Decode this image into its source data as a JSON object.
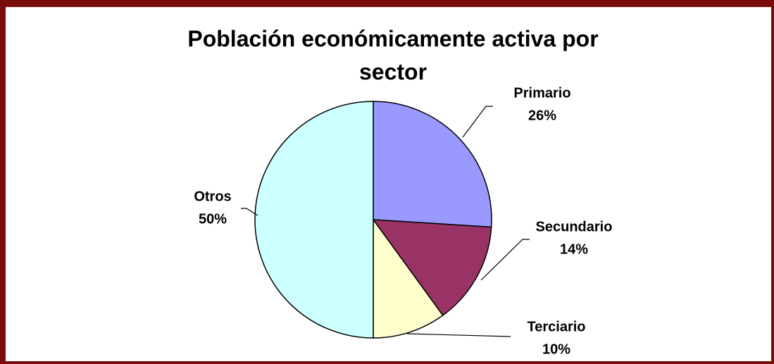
{
  "chart_data": {
    "type": "pie",
    "title": "Población económicamente activa por sector",
    "categories": [
      "Primario",
      "Secundario",
      "Terciario",
      "Otros"
    ],
    "values": [
      26,
      14,
      10,
      50
    ],
    "value_labels": [
      "26%",
      "14%",
      "10%",
      "50%"
    ],
    "colors": [
      "#9999ff",
      "#993366",
      "#ffffcc",
      "#ccffff"
    ]
  }
}
